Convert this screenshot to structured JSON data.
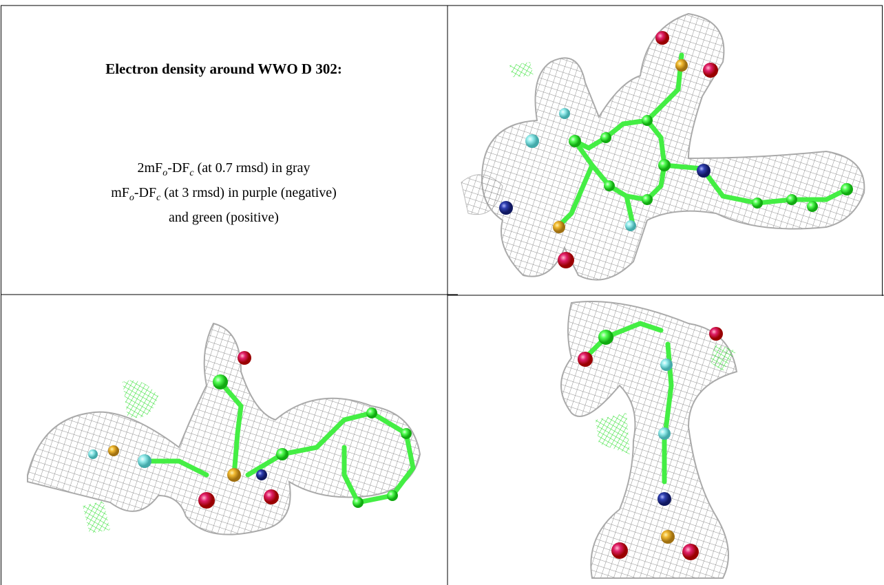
{
  "title": "Electron density around WWO D 302:",
  "description": {
    "lines": [
      [
        "2mF",
        "o",
        "-DF",
        "c",
        " (at 0.7 rmsd) in gray"
      ],
      [
        "mF",
        "o",
        "-DF",
        "c",
        " (at 3 rmsd) in purple (negative)"
      ],
      [
        "and green (positive)"
      ]
    ]
  }
}
